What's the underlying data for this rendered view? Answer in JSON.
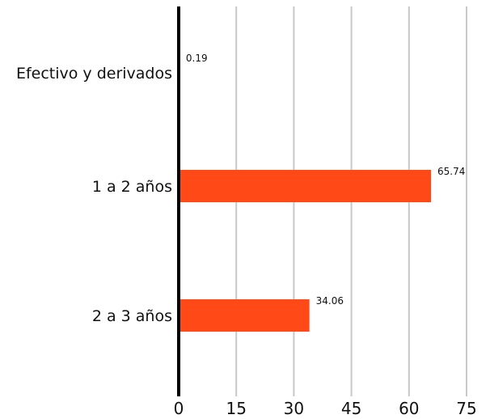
{
  "chart_data": {
    "type": "bar",
    "orientation": "horizontal",
    "categories": [
      "Efectivo y derivados",
      "1 a 2 años",
      "2 a 3 años"
    ],
    "values": [
      0.19,
      65.74,
      34.06
    ],
    "data_labels": [
      "0.19",
      "65.74",
      "34.06"
    ],
    "x_ticks": [
      0,
      15,
      30,
      45,
      60,
      75
    ],
    "x_tick_labels": [
      "0",
      "15",
      "30",
      "45",
      "60",
      "75"
    ],
    "xlim": [
      0,
      75
    ],
    "title": "",
    "xlabel": "",
    "ylabel": "",
    "grid": "vertical",
    "legend": "none",
    "colors": {
      "bar": "#ff4a17",
      "grid": "#c8c8c8",
      "axis": "#000000",
      "text": "#111111"
    }
  }
}
